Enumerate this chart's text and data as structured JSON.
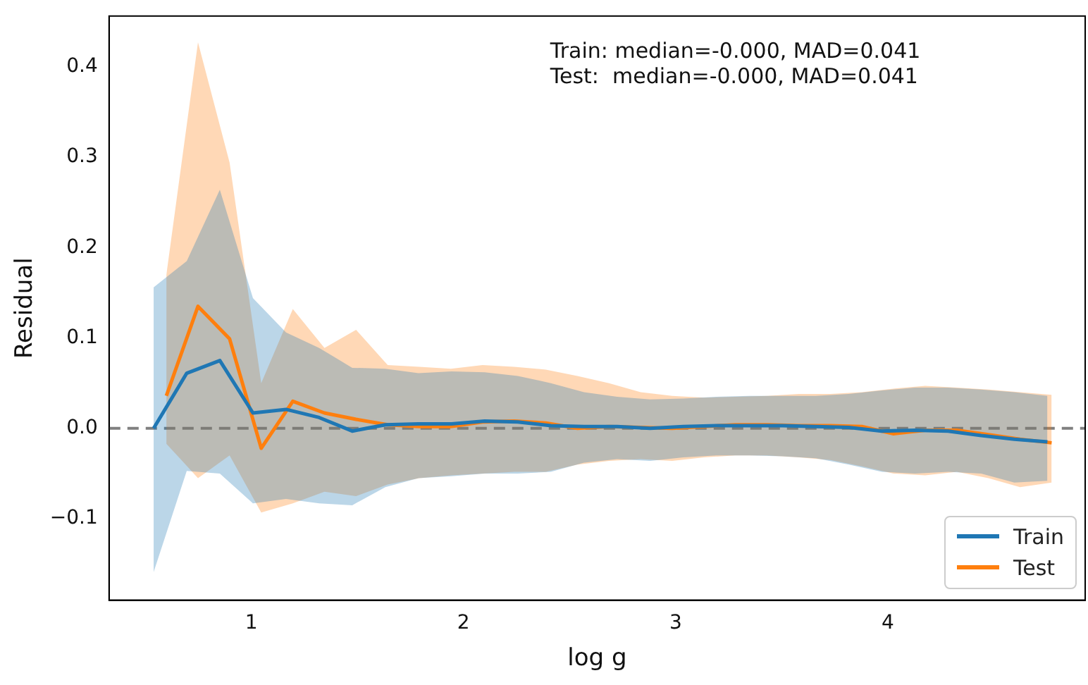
{
  "chart_data": {
    "type": "line",
    "xlabel": "log g",
    "ylabel": "Residual",
    "annotations": [
      "Train: median=-0.000, MAD=0.041",
      "Test:  median=-0.000, MAD=0.041"
    ],
    "xlim": [
      0.33,
      4.93
    ],
    "xticks": [
      1,
      2,
      3,
      4
    ],
    "ylim": [
      -0.19,
      0.456
    ],
    "yticks": [
      {
        "value": -0.1,
        "label": "−0.1"
      },
      {
        "value": 0,
        "label": "0.0"
      },
      0.1,
      0.2,
      0.3,
      0.4
    ],
    "grid": false,
    "legend": "bottom right",
    "marker": "none",
    "line_style": "solid",
    "ref_lines": [
      {
        "axis": "y",
        "value": 0,
        "color": "#808080",
        "line_style": "dashed"
      }
    ],
    "series": [
      {
        "name": "Train",
        "color": "#1f77b4",
        "x": [
          0.54,
          0.696,
          0.852,
          1.008,
          1.164,
          1.32,
          1.476,
          1.632,
          1.788,
          1.944,
          2.1,
          2.256,
          2.412,
          2.568,
          2.724,
          2.88,
          3.036,
          3.192,
          3.348,
          3.504,
          3.66,
          3.816,
          3.972,
          4.128,
          4.284,
          4.44,
          4.596,
          4.752
        ],
        "values": [
          0.0,
          0.061,
          0.075,
          0.017,
          0.021,
          0.012,
          -0.003,
          0.004,
          0.005,
          0.005,
          0.008,
          0.007,
          0.003,
          0.002,
          0.002,
          0.0,
          0.002,
          0.003,
          0.003,
          0.003,
          0.002,
          0.001,
          -0.003,
          -0.002,
          -0.003,
          -0.008,
          -0.012,
          -0.015
        ],
        "upper": [
          0.156,
          0.185,
          0.264,
          0.144,
          0.106,
          0.089,
          0.067,
          0.066,
          0.061,
          0.063,
          0.062,
          0.058,
          0.05,
          0.04,
          0.035,
          0.032,
          0.033,
          0.035,
          0.036,
          0.036,
          0.036,
          0.038,
          0.042,
          0.045,
          0.045,
          0.043,
          0.04,
          0.036
        ],
        "lower": [
          -0.159,
          -0.047,
          -0.05,
          -0.083,
          -0.078,
          -0.083,
          -0.085,
          -0.065,
          -0.055,
          -0.053,
          -0.05,
          -0.05,
          -0.048,
          -0.038,
          -0.034,
          -0.036,
          -0.032,
          -0.03,
          -0.03,
          -0.031,
          -0.033,
          -0.04,
          -0.048,
          -0.05,
          -0.048,
          -0.05,
          -0.06,
          -0.058
        ]
      },
      {
        "name": "Test",
        "color": "#ff7f0e",
        "x": [
          0.6,
          0.749,
          0.898,
          1.047,
          1.196,
          1.345,
          1.494,
          1.643,
          1.792,
          1.941,
          2.09,
          2.239,
          2.388,
          2.537,
          2.686,
          2.835,
          2.984,
          3.133,
          3.282,
          3.431,
          3.58,
          3.729,
          3.878,
          4.027,
          4.176,
          4.325,
          4.474,
          4.623,
          4.772
        ],
        "values": [
          0.036,
          0.135,
          0.099,
          -0.022,
          0.03,
          0.017,
          0.01,
          0.004,
          0.002,
          0.002,
          0.007,
          0.008,
          0.006,
          0.0,
          0.002,
          0.001,
          0.0,
          0.002,
          0.004,
          0.004,
          0.003,
          0.003,
          0.002,
          -0.006,
          -0.002,
          -0.002,
          -0.007,
          -0.012,
          -0.016
        ],
        "upper": [
          0.17,
          0.427,
          0.294,
          0.05,
          0.132,
          0.089,
          0.109,
          0.07,
          0.068,
          0.066,
          0.07,
          0.068,
          0.065,
          0.058,
          0.05,
          0.04,
          0.036,
          0.034,
          0.035,
          0.036,
          0.038,
          0.038,
          0.04,
          0.044,
          0.047,
          0.045,
          0.043,
          0.04,
          0.037
        ],
        "lower": [
          -0.017,
          -0.055,
          -0.03,
          -0.093,
          -0.083,
          -0.07,
          -0.075,
          -0.062,
          -0.055,
          -0.052,
          -0.05,
          -0.048,
          -0.048,
          -0.04,
          -0.036,
          -0.034,
          -0.036,
          -0.032,
          -0.03,
          -0.03,
          -0.032,
          -0.035,
          -0.042,
          -0.05,
          -0.052,
          -0.048,
          -0.055,
          -0.065,
          -0.06
        ]
      }
    ]
  }
}
